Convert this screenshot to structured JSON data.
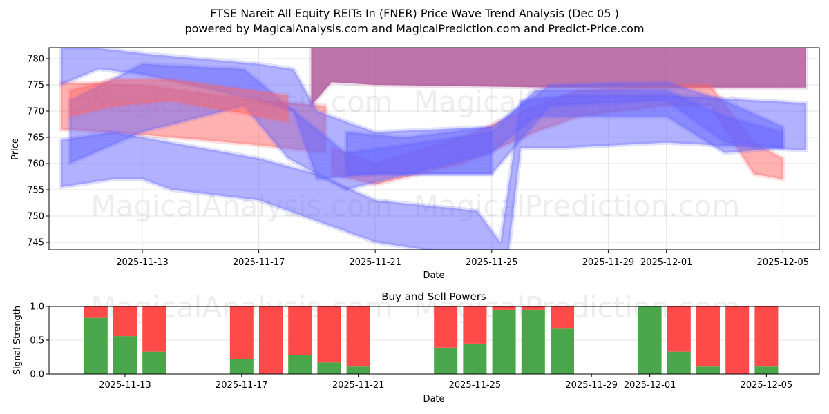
{
  "title_line1": "FTSE Nareit All Equity REITs In (FNER) Price Wave Trend Analysis (Dec 05 )",
  "title_line2": "powered by MagicalAnalysis.com and MagicalPrediction.com and Predict-Price.com",
  "watermarks": [
    "MagicalAnalysis.com",
    "MagicalPrediction.com"
  ],
  "colors": {
    "blue_band": "#6464ff",
    "red_band": "#ff6464",
    "purple_band": "#b05c9c",
    "buy": "#4aa64a",
    "sell": "#ff4a4a"
  },
  "chart_data": [
    {
      "type": "area",
      "title": "",
      "xlabel": "Date",
      "ylabel": "Price",
      "x_origin": "2025-11-13",
      "x_unit": "days since x_origin",
      "xlim": [
        -3.2,
        23.24
      ],
      "ylim": [
        743.5,
        782
      ],
      "yticks": [
        745,
        750,
        755,
        760,
        765,
        770,
        775,
        780
      ],
      "xticks": [
        {
          "x": 0,
          "label": "2025-11-13"
        },
        {
          "x": 4,
          "label": "2025-11-17"
        },
        {
          "x": 8,
          "label": "2025-11-21"
        },
        {
          "x": 12,
          "label": "2025-11-25"
        },
        {
          "x": 16,
          "label": "2025-11-29"
        },
        {
          "x": 18,
          "label": "2025-12-01"
        },
        {
          "x": 22,
          "label": "2025-12-05"
        }
      ],
      "grid": true,
      "bands": [
        {
          "name": "purple-band",
          "color": "purple",
          "points": [
            [
              5.8,
              771,
              790
            ],
            [
              6.5,
              775.5,
              790
            ],
            [
              8,
              775,
              790
            ],
            [
              14,
              774.5,
              790
            ],
            [
              22.8,
              774.5,
              790
            ]
          ]
        },
        {
          "name": "red-band-upper",
          "color": "red",
          "points": [
            [
              -2.8,
              766.5,
              775.5
            ],
            [
              0,
              765.5,
              775
            ],
            [
              4,
              763.5,
              772
            ],
            [
              6.3,
              762,
              771
            ]
          ]
        },
        {
          "name": "red-band-lower",
          "color": "red",
          "points": [
            [
              6.5,
              758,
              763
            ],
            [
              8,
              756,
              760
            ],
            [
              11,
              760,
              765
            ],
            [
              13.5,
              766,
              771
            ],
            [
              15,
              769,
              774
            ],
            [
              18,
              771,
              775
            ],
            [
              19.5,
              771,
              775
            ],
            [
              21,
              758,
              764
            ],
            [
              22,
              757,
              761
            ]
          ]
        },
        {
          "name": "blue-band-wide",
          "color": "blue",
          "points": [
            [
              -2.8,
              755.5,
              764.5
            ],
            [
              -1,
              757,
              766
            ],
            [
              0,
              757,
              765
            ],
            [
              1,
              755,
              764
            ],
            [
              4,
              753,
              761
            ],
            [
              6,
              749,
              758
            ],
            [
              8,
              745,
              753
            ],
            [
              11.5,
              742,
              751
            ],
            [
              12.3,
              730,
              745
            ],
            [
              13,
              763,
              772
            ],
            [
              14.5,
              763,
              773
            ],
            [
              18,
              764,
              773
            ],
            [
              22.8,
              762.5,
              771.5
            ]
          ]
        },
        {
          "name": "blue-band-top",
          "color": "blue",
          "points": [
            [
              -2.8,
              775,
              782
            ],
            [
              -1.5,
              778,
              782
            ],
            [
              0,
              777,
              781
            ],
            [
              4,
              772,
              779
            ],
            [
              5.2,
              770,
              778
            ],
            [
              6,
              757,
              770
            ],
            [
              8,
              758,
              766
            ],
            [
              12,
              758,
              767
            ],
            [
              14,
              771,
              775
            ],
            [
              18,
              772,
              775.5
            ],
            [
              20,
              764,
              772
            ],
            [
              22,
              763,
              767
            ]
          ]
        },
        {
          "name": "blue-band-mid",
          "color": "blue",
          "points": [
            [
              -2.5,
              760,
              772
            ],
            [
              0,
              766,
              779
            ],
            [
              3.5,
              771,
              778
            ],
            [
              5,
              761,
              771
            ],
            [
              7,
              755,
              762
            ],
            [
              12,
              762,
              766
            ],
            [
              13.5,
              769,
              774
            ],
            [
              18,
              769,
              774
            ],
            [
              20,
              762,
              769
            ],
            [
              22,
              763,
              766
            ]
          ]
        },
        {
          "name": "blue-band-pale",
          "color": "blue",
          "points": [
            [
              7,
              758,
              766
            ],
            [
              9,
              758,
              765
            ],
            [
              12,
              758,
              767
            ]
          ]
        },
        {
          "name": "red-band-thin",
          "color": "red",
          "points": [
            [
              -2.5,
              769,
              774
            ],
            [
              -1,
              771,
              776
            ],
            [
              1,
              772,
              776
            ],
            [
              5,
              768,
              773
            ]
          ]
        }
      ]
    },
    {
      "type": "bar",
      "title": "Buy and Sell Powers",
      "xlabel": "Date",
      "ylabel": "Signal Strength",
      "ylim": [
        0,
        1
      ],
      "yticks": [
        {
          "v": 0,
          "label": "0.0"
        },
        {
          "v": 0.5,
          "label": "0.5"
        },
        {
          "v": 1,
          "label": "1.0"
        }
      ],
      "xticks": [
        {
          "x": 0,
          "label": "2025-11-13"
        },
        {
          "x": 4,
          "label": "2025-11-17"
        },
        {
          "x": 8,
          "label": "2025-11-21"
        },
        {
          "x": 12,
          "label": "2025-11-25"
        },
        {
          "x": 16,
          "label": "2025-11-29"
        },
        {
          "x": 18,
          "label": "2025-12-01"
        },
        {
          "x": 22,
          "label": "2025-12-05"
        }
      ],
      "categories": [
        "2025-11-12",
        "2025-11-13",
        "2025-11-14",
        "2025-11-17",
        "2025-11-18",
        "2025-11-19",
        "2025-11-20",
        "2025-11-21",
        "2025-11-24",
        "2025-11-25",
        "2025-11-26",
        "2025-11-27",
        "2025-11-28",
        "2025-12-01",
        "2025-12-02",
        "2025-12-03",
        "2025-12-04",
        "2025-12-05"
      ],
      "day_offsets": [
        -1,
        0,
        1,
        4,
        5,
        6,
        7,
        8,
        11,
        12,
        13,
        14,
        15,
        18,
        19,
        20,
        21,
        22
      ],
      "series": [
        {
          "name": "Buy",
          "values": [
            0.83,
            0.56,
            0.33,
            0.22,
            0.0,
            0.28,
            0.17,
            0.11,
            0.39,
            0.45,
            0.95,
            0.95,
            0.67,
            1.0,
            0.33,
            0.11,
            0.0,
            0.11
          ]
        },
        {
          "name": "Sell",
          "values": [
            0.17,
            0.44,
            0.67,
            0.78,
            1.0,
            0.72,
            0.83,
            0.89,
            0.61,
            0.55,
            0.05,
            0.05,
            0.33,
            0.0,
            0.67,
            0.89,
            1.0,
            0.89
          ]
        }
      ]
    }
  ]
}
